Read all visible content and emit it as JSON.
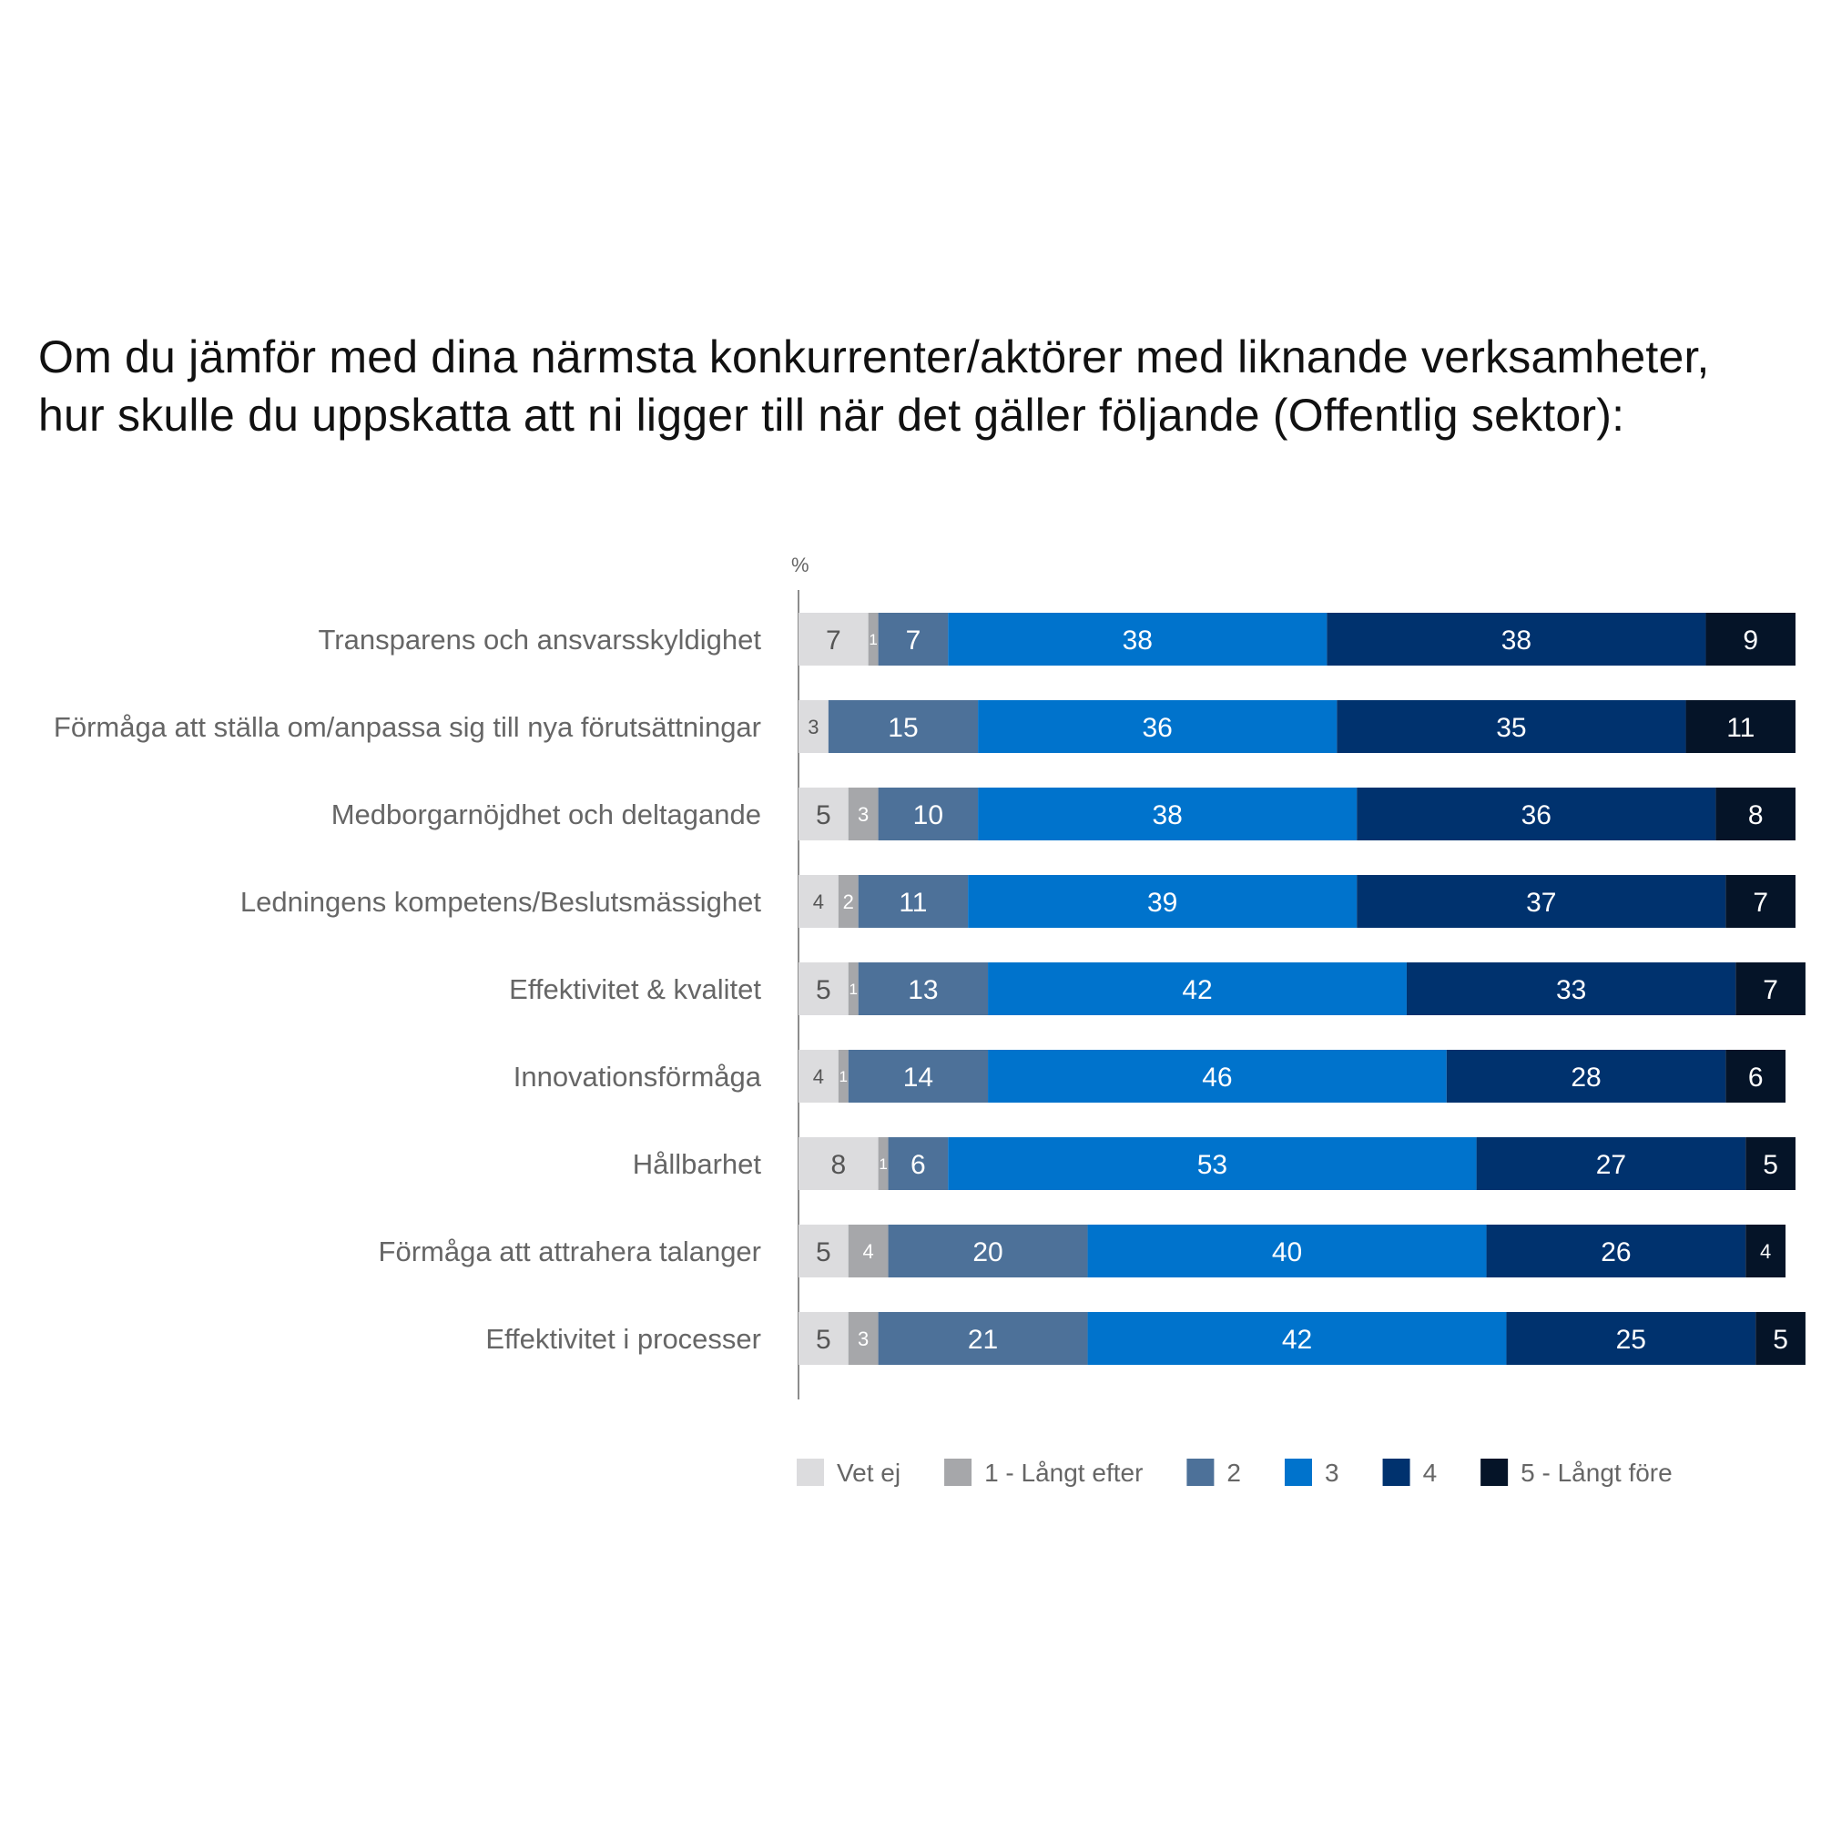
{
  "title_lines": [
    "Om du jämför med dina närmsta konkurrenter/aktörer med liknande verksamheter,",
    "hur skulle du uppskatta att ni ligger till när det gäller följande (Offentlig sektor):"
  ],
  "colors": {
    "vet_ej": "#dcdcde",
    "langt_efter": "#a6a7aa",
    "two": "#4d7199",
    "three": "#0073cc",
    "four": "#00326e",
    "five": "#051428",
    "axis": "#8c8c8c",
    "category_text": "#666666",
    "label_light": "#ffffff",
    "label_dark": "#555555"
  },
  "chart_data": {
    "type": "bar",
    "orientation": "horizontal",
    "stacked": true,
    "unit_label": "%",
    "title": "Om du jämför med dina närmsta konkurrenter/aktörer med liknande verksamheter, hur skulle du uppskatta att ni ligger till när det gäller följande (Offentlig sektor):",
    "categories": [
      "Transparens och ansvarsskyldighet",
      "Förmåga att ställa om/anpassa sig till nya förutsättningar",
      "Medborgarnöjdhet och deltagande",
      "Ledningens kompetens/Beslutsmässighet",
      "Effektivitet & kvalitet",
      "Innovationsförmåga",
      "Hållbarhet",
      "Förmåga att attrahera talanger",
      "Effektivitet i processer"
    ],
    "series": [
      {
        "name": "Vet ej",
        "color": "#dcdcde",
        "label_color": "#555555",
        "values": [
          7,
          3,
          5,
          4,
          5,
          4,
          8,
          5,
          5
        ],
        "labels": [
          "7",
          "3",
          "5",
          "4",
          "5",
          "4",
          "8",
          "5",
          "5"
        ]
      },
      {
        "name": "1 - Långt efter",
        "color": "#a6a7aa",
        "label_color": "#ffffff",
        "values": [
          1,
          0,
          3,
          2,
          1,
          1,
          1,
          4,
          3
        ],
        "labels": [
          "1",
          "",
          "3",
          "2",
          "1",
          "1",
          "1",
          "4",
          "3"
        ]
      },
      {
        "name": "2",
        "color": "#4d7199",
        "label_color": "#ffffff",
        "values": [
          7,
          15,
          10,
          11,
          13,
          14,
          6,
          20,
          21
        ],
        "labels": [
          "7",
          "15",
          "10",
          "11",
          "13",
          "14",
          "6",
          "20",
          "21"
        ]
      },
      {
        "name": "3",
        "color": "#0073cc",
        "label_color": "#ffffff",
        "values": [
          38,
          36,
          38,
          39,
          42,
          46,
          53,
          40,
          42
        ],
        "labels": [
          "38",
          "36",
          "38",
          "39",
          "42",
          "46",
          "53",
          "40",
          "42"
        ]
      },
      {
        "name": "4",
        "color": "#00326e",
        "label_color": "#ffffff",
        "values": [
          38,
          35,
          36,
          37,
          33,
          28,
          27,
          26,
          25
        ],
        "labels": [
          "38",
          "35",
          "36",
          "37",
          "33",
          "28",
          "27",
          "26",
          "25"
        ]
      },
      {
        "name": "5 - Långt före",
        "color": "#051428",
        "label_color": "#ffffff",
        "values": [
          9,
          11,
          8,
          7,
          7,
          6,
          5,
          4,
          5
        ],
        "labels": [
          "9",
          "11",
          "8",
          "7",
          "7",
          "6",
          "5",
          "4",
          "5"
        ]
      }
    ],
    "xlim": [
      0,
      100
    ],
    "legend_position": "bottom",
    "grid": false
  }
}
